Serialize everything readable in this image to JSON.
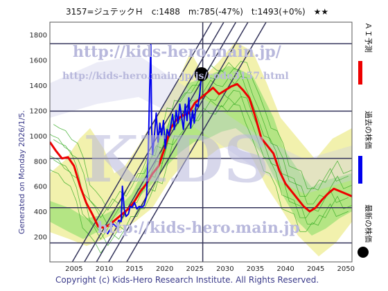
{
  "header": {
    "text": "3157=ジュテックＨ　c:1488　m:785(-47%)　t:1493(+0%)　★★"
  },
  "side_label": "Generated on Monday 2026/1/5.",
  "footer": "Copyright (c) Kids-Hero Research Institute. All Rights Reserved.",
  "watermarks": {
    "url_main": "http://kids-hero.main.jp/",
    "url_stock": "http://kids-hero.main.jp/js/code3157.html",
    "big": "KIDS",
    "bottom": "http://kids-hero.main.jp"
  },
  "legend": [
    {
      "name": "ＡＩ予測",
      "color": "#ee0000",
      "marker": "line"
    },
    {
      "name": "過去の株価",
      "color": "#0000ee",
      "marker": "line"
    },
    {
      "name": "最新の株価",
      "color": "#000000",
      "marker": "dot"
    }
  ],
  "chart_data": {
    "type": "line",
    "xlim": [
      2001,
      2051
    ],
    "ylim": [
      0,
      1900
    ],
    "x_ticks": [
      2005,
      2010,
      2015,
      2020,
      2025,
      2030,
      2035,
      2040,
      2045,
      2050
    ],
    "y_ticks": [
      200,
      400,
      600,
      800,
      1000,
      1200,
      1400,
      1600,
      1800
    ],
    "hlines": [
      150,
      430,
      820,
      1195,
      1730
    ],
    "current_year": 2026.3,
    "latest_point": {
      "x": 2026.1,
      "y": 1488
    },
    "ai_forecast": [
      [
        2001,
        950
      ],
      [
        2002,
        880
      ],
      [
        2003,
        820
      ],
      [
        2004,
        830
      ],
      [
        2005,
        760
      ],
      [
        2006,
        600
      ],
      [
        2007,
        470
      ],
      [
        2008,
        380
      ],
      [
        2009,
        280
      ],
      [
        2010,
        270
      ],
      [
        2011,
        300
      ],
      [
        2012,
        340
      ],
      [
        2013,
        380
      ],
      [
        2014,
        420
      ],
      [
        2015,
        480
      ],
      [
        2016,
        560
      ],
      [
        2017,
        620
      ],
      [
        2018,
        700
      ],
      [
        2019,
        760
      ],
      [
        2020,
        900
      ],
      [
        2021,
        1060
      ],
      [
        2022,
        1130
      ],
      [
        2023,
        1160
      ],
      [
        2024,
        1180
      ],
      [
        2025,
        1260
      ],
      [
        2026,
        1300
      ],
      [
        2027,
        1340
      ],
      [
        2028,
        1380
      ],
      [
        2029,
        1330
      ],
      [
        2030,
        1360
      ],
      [
        2031,
        1390
      ],
      [
        2032,
        1410
      ],
      [
        2033,
        1360
      ],
      [
        2034,
        1300
      ],
      [
        2035,
        1150
      ],
      [
        2036,
        980
      ],
      [
        2037,
        920
      ],
      [
        2038,
        860
      ],
      [
        2039,
        720
      ],
      [
        2040,
        620
      ],
      [
        2041,
        560
      ],
      [
        2042,
        500
      ],
      [
        2043,
        440
      ],
      [
        2044,
        400
      ],
      [
        2045,
        430
      ],
      [
        2046,
        490
      ],
      [
        2047,
        540
      ],
      [
        2048,
        580
      ],
      [
        2049,
        560
      ],
      [
        2050,
        540
      ],
      [
        2051,
        520
      ]
    ],
    "past_price": [
      [
        2010.5,
        220
      ],
      [
        2011,
        260
      ],
      [
        2011.5,
        300
      ],
      [
        2012,
        280
      ],
      [
        2012.4,
        330
      ],
      [
        2012.8,
        320
      ],
      [
        2013,
        600
      ],
      [
        2013.3,
        420
      ],
      [
        2013.6,
        360
      ],
      [
        2014,
        380
      ],
      [
        2014.3,
        440
      ],
      [
        2014.6,
        430
      ],
      [
        2015,
        470
      ],
      [
        2015.4,
        420
      ],
      [
        2015.8,
        440
      ],
      [
        2016.2,
        430
      ],
      [
        2016.6,
        450
      ],
      [
        2017,
        520
      ],
      [
        2017.3,
        900
      ],
      [
        2017.5,
        1350
      ],
      [
        2017.7,
        1720
      ],
      [
        2017.85,
        1050
      ],
      [
        2018,
        850
      ],
      [
        2018.3,
        1000
      ],
      [
        2018.6,
        1180
      ],
      [
        2018.9,
        950
      ],
      [
        2019.2,
        1100
      ],
      [
        2019.5,
        1000
      ],
      [
        2019.8,
        1120
      ],
      [
        2020.1,
        900
      ],
      [
        2020.4,
        1050
      ],
      [
        2020.7,
        1000
      ],
      [
        2021,
        1080
      ],
      [
        2021.3,
        1170
      ],
      [
        2021.6,
        1050
      ],
      [
        2021.9,
        1200
      ],
      [
        2022.2,
        1100
      ],
      [
        2022.5,
        1250
      ],
      [
        2022.8,
        1150
      ],
      [
        2023.1,
        1050
      ],
      [
        2023.4,
        1250
      ],
      [
        2023.7,
        1120
      ],
      [
        2024,
        1300
      ],
      [
        2024.3,
        1060
      ],
      [
        2024.6,
        1200
      ],
      [
        2024.9,
        1100
      ],
      [
        2025.2,
        1250
      ],
      [
        2025.5,
        1230
      ],
      [
        2025.8,
        1330
      ],
      [
        2026.1,
        1488
      ]
    ],
    "channel_lines": [
      {
        "x1": 2003.5,
        "y1": -100,
        "x2": 2029,
        "y2": 2000
      },
      {
        "x1": 2005.5,
        "y1": -100,
        "x2": 2031,
        "y2": 2000
      },
      {
        "x1": 2007.5,
        "y1": -100,
        "x2": 2033,
        "y2": 2000
      },
      {
        "x1": 2009.5,
        "y1": -100,
        "x2": 2035,
        "y2": 2000
      },
      {
        "x1": 2012.5,
        "y1": -100,
        "x2": 2038,
        "y2": 2000
      }
    ]
  }
}
